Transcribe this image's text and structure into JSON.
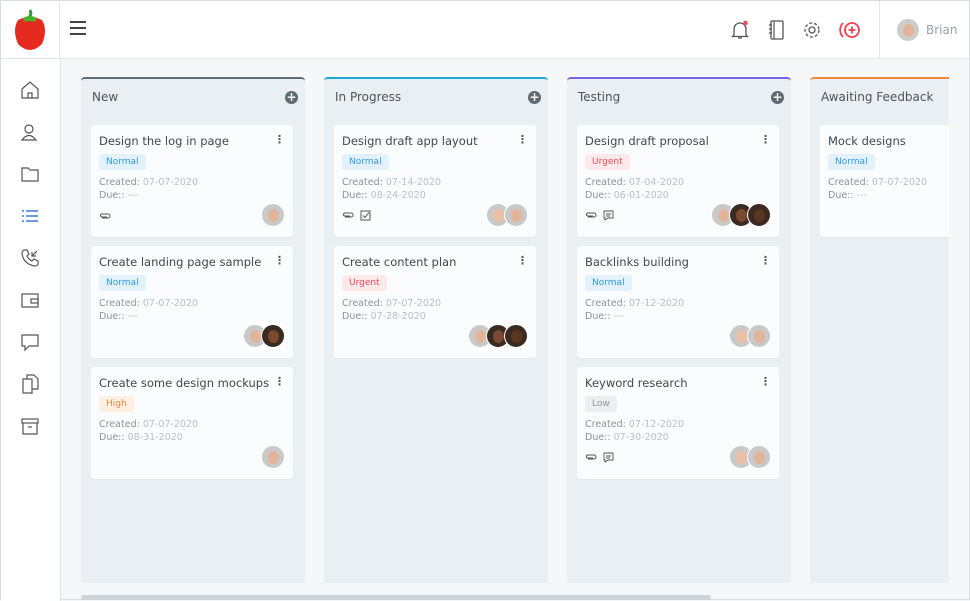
{
  "header": {
    "user_name": "Brian",
    "icons": [
      "bell-icon",
      "notebook-icon",
      "gear-icon",
      "add-circle-icon"
    ]
  },
  "sidebar": {
    "items": [
      "home-icon",
      "contacts-icon",
      "folder-icon",
      "list-icon",
      "phone-icon",
      "wallet-icon",
      "chat-icon",
      "documents-icon",
      "archive-icon"
    ],
    "active": "list-icon"
  },
  "colors": {
    "Normal": {
      "bg": "#e3f1fc",
      "fg": "#2d9de0"
    },
    "Urgent": {
      "bg": "#fde8ea",
      "fg": "#ef4a5b"
    },
    "High": {
      "bg": "#fdf0e3",
      "fg": "#f08a3a"
    },
    "Low": {
      "bg": "#eceef0",
      "fg": "#8d959c"
    }
  },
  "columns": [
    {
      "title": "New",
      "color": "#5f6b7a",
      "cards": [
        {
          "title": "Design the log in page",
          "priority": "Normal",
          "created_label": "Created:",
          "created": "07-07-2020",
          "due_label": "Due::",
          "due": "---",
          "icons": [
            "paperclip-icon"
          ],
          "avatars": [
            "#e2b49a"
          ]
        },
        {
          "title": "Create landing page sample",
          "priority": "Normal",
          "created_label": "Created:",
          "created": "07-07-2020",
          "due_label": "Due::",
          "due": "---",
          "icons": [],
          "avatars": [
            "#e2b49a",
            "#7a4a30"
          ]
        },
        {
          "title": "Create some design mockups",
          "priority": "High",
          "created_label": "Created:",
          "created": "07-07-2020",
          "due_label": "Due::",
          "due": "08-31-2020",
          "icons": [],
          "avatars": [
            "#e2b49a"
          ]
        }
      ]
    },
    {
      "title": "In Progress",
      "color": "#1ea5e0",
      "cards": [
        {
          "title": "Design draft app layout",
          "priority": "Normal",
          "created_label": "Created:",
          "created": "07-14-2020",
          "due_label": "Due::",
          "due": "08-24-2020",
          "icons": [
            "paperclip-icon",
            "checkbox-icon"
          ],
          "avatars": [
            "#eac0a6",
            "#e2b49a"
          ]
        },
        {
          "title": "Create content plan",
          "priority": "Urgent",
          "created_label": "Created:",
          "created": "07-07-2020",
          "due_label": "Due::",
          "due": "07-28-2020",
          "icons": [],
          "avatars": [
            "#e2b49a",
            "#7a4a30",
            "#5a3520"
          ]
        }
      ]
    },
    {
      "title": "Testing",
      "color": "#7b61e8",
      "cards": [
        {
          "title": "Design draft proposal",
          "priority": "Urgent",
          "created_label": "Created:",
          "created": "07-04-2020",
          "due_label": "Due::",
          "due": "06-01-2020",
          "icons": [
            "paperclip-icon",
            "comment-icon"
          ],
          "avatars": [
            "#e2b49a",
            "#7a4a30",
            "#5a3520"
          ]
        },
        {
          "title": "Backlinks building",
          "priority": "Normal",
          "created_label": "Created:",
          "created": "07-12-2020",
          "due_label": "Due::",
          "due": "---",
          "icons": [],
          "avatars": [
            "#eac0a6",
            "#e2b49a"
          ]
        },
        {
          "title": "Keyword research",
          "priority": "Low",
          "created_label": "Created:",
          "created": "07-12-2020",
          "due_label": "Due::",
          "due": "07-30-2020",
          "icons": [
            "paperclip-icon",
            "comment-icon"
          ],
          "avatars": [
            "#eac0a6",
            "#e2b49a"
          ]
        }
      ]
    },
    {
      "title": "Awaiting Feedback",
      "color": "#f0883e",
      "cards": [
        {
          "title": "Mock designs",
          "priority": "Normal",
          "created_label": "Created:",
          "created": "07-07-2020",
          "due_label": "Due::",
          "due": "---",
          "icons": [],
          "avatars": []
        }
      ]
    }
  ]
}
